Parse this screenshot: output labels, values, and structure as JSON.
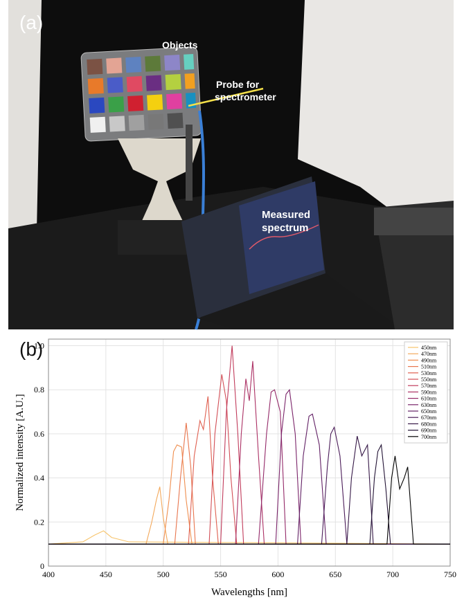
{
  "panel_a": {
    "label": "(a)",
    "objects": "Objects",
    "probe": [
      "Probe for",
      "spectrometer"
    ],
    "spectrum": [
      "Measured",
      "spectrum"
    ]
  },
  "chart_data": {
    "type": "line",
    "panel_label": "(b)",
    "x_label": "Wavelengths [nm]",
    "y_label": "Normalized intensity [A.U.]",
    "xlim": [
      400,
      750
    ],
    "xticks": [
      400,
      450,
      500,
      550,
      600,
      650,
      700,
      750
    ],
    "ylim": [
      0,
      1.03
    ],
    "yticks": [
      0,
      0.2,
      0.4,
      0.6,
      0.8,
      {
        "value": 1,
        "label": "1.0"
      }
    ],
    "grid": true,
    "legend": "upper right",
    "series": [
      {
        "name": "450nm",
        "color": "#f7c46c",
        "x": [
          400,
          430,
          440,
          448,
          455,
          470,
          750
        ],
        "values": [
          0.1,
          0.11,
          0.14,
          0.16,
          0.13,
          0.11,
          0.1
        ]
      },
      {
        "name": "470nm",
        "color": "#f3a85a",
        "x": [
          400,
          485,
          490,
          494,
          497,
          500,
          504,
          750
        ],
        "values": [
          0.1,
          0.1,
          0.2,
          0.3,
          0.36,
          0.22,
          0.1,
          0.1
        ]
      },
      {
        "name": "490nm",
        "color": "#ef8e4f",
        "x": [
          400,
          500,
          505,
          509,
          512,
          516,
          520,
          525,
          750
        ],
        "values": [
          0.1,
          0.1,
          0.3,
          0.52,
          0.55,
          0.54,
          0.3,
          0.1,
          0.1
        ]
      },
      {
        "name": "510nm",
        "color": "#e8754d",
        "x": [
          400,
          510,
          515,
          520,
          524,
          528,
          750
        ],
        "values": [
          0.1,
          0.1,
          0.4,
          0.65,
          0.45,
          0.1,
          0.1
        ]
      },
      {
        "name": "530nm",
        "color": "#df5f4f",
        "x": [
          400,
          522,
          527,
          532,
          535,
          539,
          543,
          548,
          750
        ],
        "values": [
          0.1,
          0.1,
          0.5,
          0.66,
          0.62,
          0.77,
          0.4,
          0.1,
          0.1
        ]
      },
      {
        "name": "550nm",
        "color": "#d24d55",
        "x": [
          400,
          540,
          545,
          551,
          555,
          559,
          564,
          750
        ],
        "values": [
          0.1,
          0.1,
          0.6,
          0.87,
          0.75,
          0.4,
          0.1,
          0.1
        ]
      },
      {
        "name": "570nm",
        "color": "#c13b5b",
        "x": [
          400,
          550,
          555,
          560,
          565,
          570,
          750
        ],
        "values": [
          0.1,
          0.1,
          0.7,
          1.0,
          0.6,
          0.1,
          0.1
        ]
      },
      {
        "name": "590nm",
        "color": "#ab2f63",
        "x": [
          400,
          563,
          568,
          572,
          575,
          578,
          583,
          588,
          750
        ],
        "values": [
          0.1,
          0.1,
          0.6,
          0.85,
          0.75,
          0.93,
          0.5,
          0.1,
          0.1
        ]
      },
      {
        "name": "610nm",
        "color": "#932868",
        "x": [
          400,
          583,
          590,
          594,
          597,
          602,
          607,
          750
        ],
        "values": [
          0.1,
          0.1,
          0.6,
          0.79,
          0.8,
          0.7,
          0.1,
          0.1
        ]
      },
      {
        "name": "630nm",
        "color": "#7a2369",
        "x": [
          400,
          598,
          603,
          607,
          610,
          615,
          620,
          750
        ],
        "values": [
          0.1,
          0.1,
          0.6,
          0.78,
          0.8,
          0.6,
          0.1,
          0.1
        ]
      },
      {
        "name": "650nm",
        "color": "#611f64",
        "x": [
          400,
          617,
          622,
          627,
          630,
          636,
          642,
          750
        ],
        "values": [
          0.1,
          0.1,
          0.5,
          0.68,
          0.69,
          0.55,
          0.1,
          0.1
        ]
      },
      {
        "name": "670nm",
        "color": "#4a1b58",
        "x": [
          400,
          638,
          643,
          646,
          649,
          654,
          660,
          750
        ],
        "values": [
          0.1,
          0.1,
          0.45,
          0.6,
          0.63,
          0.5,
          0.1,
          0.1
        ]
      },
      {
        "name": "680nm",
        "color": "#351746",
        "x": [
          400,
          660,
          664,
          669,
          673,
          678,
          683,
          750
        ],
        "values": [
          0.1,
          0.1,
          0.4,
          0.59,
          0.5,
          0.55,
          0.1,
          0.1
        ]
      },
      {
        "name": "690nm",
        "color": "#221234",
        "x": [
          400,
          680,
          684,
          687,
          690,
          694,
          698,
          750
        ],
        "values": [
          0.1,
          0.1,
          0.4,
          0.52,
          0.55,
          0.35,
          0.1,
          0.1
        ]
      },
      {
        "name": "700nm",
        "color": "#000000",
        "x": [
          400,
          695,
          699,
          702,
          706,
          710,
          713,
          718,
          750
        ],
        "values": [
          0.1,
          0.1,
          0.4,
          0.5,
          0.35,
          0.4,
          0.45,
          0.1,
          0.1
        ]
      }
    ]
  }
}
